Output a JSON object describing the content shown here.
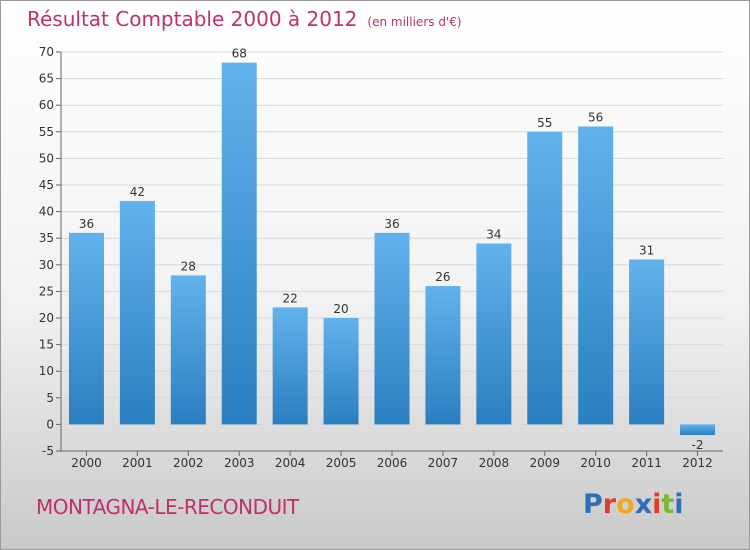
{
  "header": {
    "title": "Résultat Comptable 2000 à 2012",
    "subtitle": "(en milliers d'€)"
  },
  "footer": {
    "commune": "MONTAGNA-LE-RECONDUIT",
    "logo": {
      "text": "Proxiti",
      "letter_colors": [
        "#2f6db5",
        "#e03c2b",
        "#f2a91f",
        "#2f6db5",
        "#e03c2b",
        "#7ab932",
        "#2f6db5"
      ]
    }
  },
  "colors": {
    "title": "#c0306a",
    "bar_light": "#62b2ec",
    "bar_dark": "#2a7fc0",
    "grid": "#d8d8d8",
    "axis": "#666666"
  },
  "chart_data": {
    "type": "bar",
    "title": "Résultat Comptable 2000 à 2012",
    "subtitle": "(en milliers d'€)",
    "categories": [
      "2000",
      "2001",
      "2002",
      "2003",
      "2004",
      "2005",
      "2006",
      "2007",
      "2008",
      "2009",
      "2010",
      "2011",
      "2012"
    ],
    "values": [
      36,
      42,
      28,
      68,
      22,
      20,
      36,
      26,
      34,
      55,
      56,
      31,
      -2
    ],
    "data_labels": [
      "36",
      "42",
      "28",
      "68",
      "22",
      "20",
      "36",
      "26",
      "34",
      "55",
      "56",
      "31",
      "-2"
    ],
    "ylim": [
      -5,
      70
    ],
    "yticks": [
      -5,
      0,
      5,
      10,
      15,
      20,
      25,
      30,
      35,
      40,
      45,
      50,
      55,
      60,
      65,
      70
    ],
    "ytick_labels": [
      "-5",
      "0",
      "5",
      "10",
      "15",
      "20",
      "25",
      "30",
      "35",
      "40",
      "45",
      "50",
      "55",
      "60",
      "65",
      "70"
    ],
    "grid": true,
    "xlabel": "",
    "ylabel": ""
  }
}
